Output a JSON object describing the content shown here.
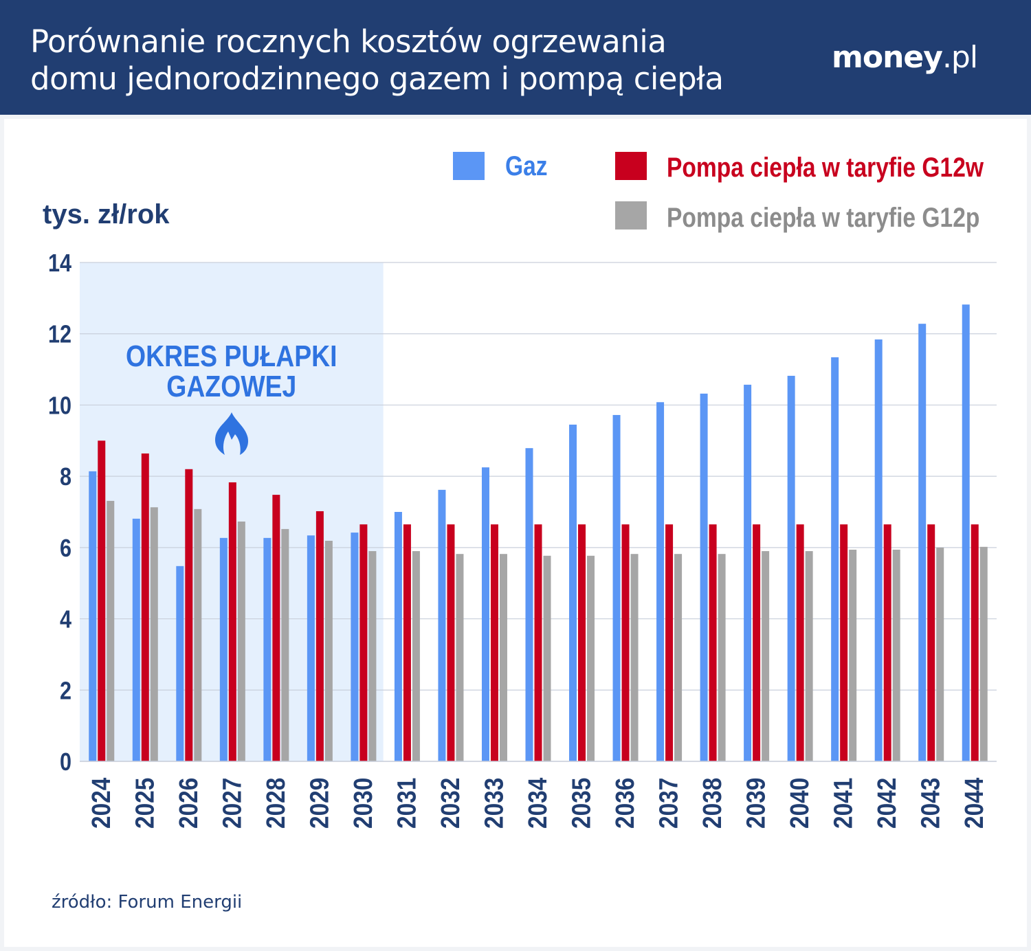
{
  "header": {
    "title_line1": "Porównanie rocznych kosztów ogrzewania",
    "title_line2": "domu jednorodzinnego gazem i pompą ciepła",
    "logo": "money.pl"
  },
  "source": "źródło: Forum Energii",
  "chart_data": {
    "type": "bar",
    "title": "Porównanie rocznych kosztów ogrzewania domu jednorodzinnego gazem i pompą ciepła",
    "ylabel": "tys. zł/rok",
    "xlabel": "",
    "ylim": [
      0,
      14
    ],
    "yticks": [
      0,
      2,
      4,
      6,
      8,
      10,
      12,
      14
    ],
    "grid": true,
    "legend_placement": "top-right",
    "annotation": {
      "text_line1": "OKRES PUŁAPKI",
      "text_line2": "GAZOWEJ",
      "icon": "flame-icon",
      "shaded_range": [
        "2024",
        "2030"
      ],
      "color": "#2f73e0",
      "shade_color": "#e5f0fd"
    },
    "categories": [
      "2024",
      "2025",
      "2026",
      "2027",
      "2028",
      "2029",
      "2030",
      "2031",
      "2032",
      "2033",
      "2034",
      "2035",
      "2036",
      "2037",
      "2038",
      "2039",
      "2040",
      "2041",
      "2042",
      "2043",
      "2044"
    ],
    "series": [
      {
        "name": "Gaz",
        "color": "#5b96f5",
        "legend_text_color": "#3b7fe8",
        "values": [
          8.14,
          6.81,
          5.48,
          6.27,
          6.27,
          6.34,
          6.42,
          7.0,
          7.62,
          8.25,
          8.79,
          9.45,
          9.72,
          10.08,
          10.32,
          10.57,
          10.82,
          11.34,
          11.84,
          12.28,
          12.82
        ]
      },
      {
        "name": "Pompa ciepła w taryfie G12w",
        "color": "#c8001e",
        "legend_text_color": "#c8001e",
        "values": [
          9.0,
          8.64,
          8.2,
          7.83,
          7.48,
          7.02,
          6.65,
          6.65,
          6.65,
          6.65,
          6.65,
          6.65,
          6.65,
          6.65,
          6.65,
          6.65,
          6.65,
          6.65,
          6.65,
          6.65,
          6.65
        ]
      },
      {
        "name": "Pompa ciepła w taryfie G12p",
        "color": "#a6a6a6",
        "legend_text_color": "#8c8c8c",
        "values": [
          7.31,
          7.13,
          7.08,
          6.73,
          6.52,
          6.19,
          5.9,
          5.9,
          5.82,
          5.82,
          5.77,
          5.77,
          5.82,
          5.82,
          5.82,
          5.9,
          5.9,
          5.94,
          5.94,
          6.0,
          6.02
        ]
      }
    ]
  }
}
